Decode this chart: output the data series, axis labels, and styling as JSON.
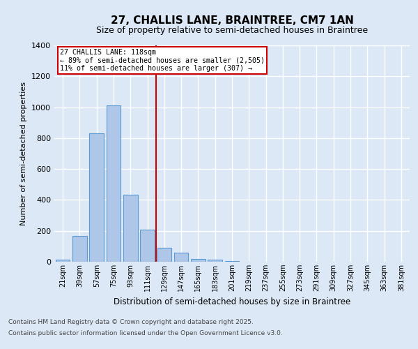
{
  "title": "27, CHALLIS LANE, BRAINTREE, CM7 1AN",
  "subtitle": "Size of property relative to semi-detached houses in Braintree",
  "xlabel": "Distribution of semi-detached houses by size in Braintree",
  "ylabel": "Number of semi-detached properties",
  "footnote1": "Contains HM Land Registry data © Crown copyright and database right 2025.",
  "footnote2": "Contains public sector information licensed under the Open Government Licence v3.0.",
  "categories": [
    "21sqm",
    "39sqm",
    "57sqm",
    "75sqm",
    "93sqm",
    "111sqm",
    "129sqm",
    "147sqm",
    "165sqm",
    "183sqm",
    "201sqm",
    "219sqm",
    "237sqm",
    "255sqm",
    "273sqm",
    "291sqm",
    "309sqm",
    "327sqm",
    "345sqm",
    "363sqm",
    "381sqm"
  ],
  "values": [
    15,
    165,
    830,
    1010,
    435,
    210,
    90,
    60,
    20,
    15,
    5,
    0,
    0,
    0,
    0,
    0,
    0,
    0,
    0,
    0,
    0
  ],
  "bar_color": "#aec6e8",
  "bar_edge_color": "#5b9bd5",
  "property_bin_index": 5,
  "annotation_title": "27 CHALLIS LANE: 118sqm",
  "annotation_line1": "← 89% of semi-detached houses are smaller (2,505)",
  "annotation_line2": "11% of semi-detached houses are larger (307) →",
  "vline_color": "#cc0000",
  "annotation_box_color": "#ffffff",
  "annotation_box_edge_color": "#cc0000",
  "ylim": [
    0,
    1400
  ],
  "yticks": [
    0,
    200,
    400,
    600,
    800,
    1000,
    1200,
    1400
  ],
  "background_color": "#dce8f5",
  "axes_background_color": "#dce8f5",
  "grid_color": "#ffffff",
  "title_fontsize": 11,
  "subtitle_fontsize": 9
}
